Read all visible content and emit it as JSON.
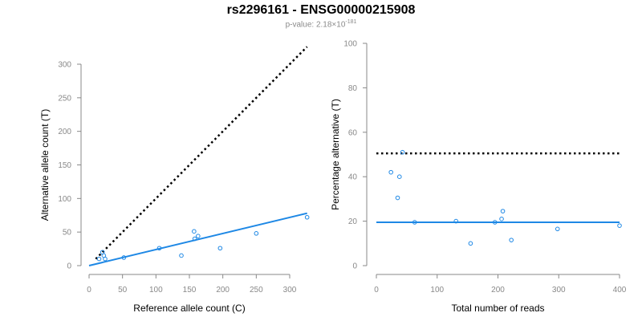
{
  "header": {
    "title": "rs2296161 - ENSG00000215908",
    "pvalue_prefix": "p-value: 2.18×10",
    "pvalue_exponent": "-181"
  },
  "colors": {
    "point": "#1e88e5",
    "fit": "#1e88e5",
    "reference": "#000000",
    "axis": "#888888"
  },
  "chart_data": [
    {
      "type": "scatter",
      "xlabel": "Reference allele count (C)",
      "ylabel": "Alternative allele count (T)",
      "xlim": [
        0,
        330
      ],
      "ylim": [
        0,
        300
      ],
      "xticks": [
        0,
        50,
        100,
        150,
        200,
        250,
        300
      ],
      "yticks": [
        0,
        50,
        100,
        150,
        200,
        250,
        300
      ],
      "grid": false,
      "points": [
        {
          "x": 15,
          "y": 10
        },
        {
          "x": 20,
          "y": 20
        },
        {
          "x": 22,
          "y": 15
        },
        {
          "x": 24,
          "y": 10
        },
        {
          "x": 52,
          "y": 12
        },
        {
          "x": 105,
          "y": 26
        },
        {
          "x": 138,
          "y": 15
        },
        {
          "x": 157,
          "y": 51
        },
        {
          "x": 158,
          "y": 40
        },
        {
          "x": 163,
          "y": 44
        },
        {
          "x": 196,
          "y": 26
        },
        {
          "x": 250,
          "y": 48
        },
        {
          "x": 326,
          "y": 72
        }
      ],
      "fit_line": {
        "from": [
          0,
          0
        ],
        "to": [
          326,
          78
        ]
      },
      "reference_line": {
        "from": [
          10,
          10
        ],
        "to": [
          326,
          326
        ]
      }
    },
    {
      "type": "scatter",
      "xlabel": "Total number of reads",
      "ylabel": "Percentage alternative (T)",
      "xlim": [
        0,
        400
      ],
      "ylim": [
        0,
        100
      ],
      "xticks": [
        0,
        100,
        200,
        300,
        400
      ],
      "yticks": [
        0,
        20,
        40,
        60,
        80,
        100
      ],
      "grid": false,
      "points": [
        {
          "x": 24,
          "y": 42
        },
        {
          "x": 35,
          "y": 30.5
        },
        {
          "x": 38,
          "y": 40
        },
        {
          "x": 43,
          "y": 51
        },
        {
          "x": 63,
          "y": 19.5
        },
        {
          "x": 131,
          "y": 20
        },
        {
          "x": 155,
          "y": 10
        },
        {
          "x": 195,
          "y": 19.5
        },
        {
          "x": 206,
          "y": 21
        },
        {
          "x": 208,
          "y": 24.5
        },
        {
          "x": 222,
          "y": 11.5
        },
        {
          "x": 298,
          "y": 16.5
        },
        {
          "x": 400,
          "y": 18
        }
      ],
      "fit_line": {
        "from": [
          0,
          19.5
        ],
        "to": [
          400,
          19.5
        ]
      },
      "reference_line": {
        "from": [
          0,
          50.5
        ],
        "to": [
          400,
          50.5
        ]
      }
    }
  ]
}
